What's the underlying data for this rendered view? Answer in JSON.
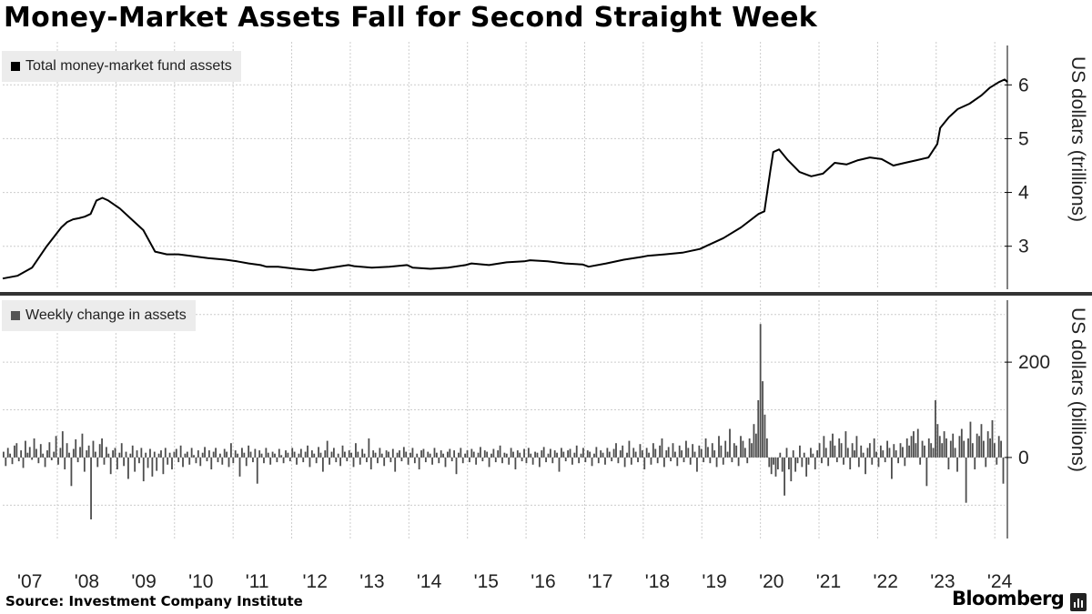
{
  "title": "Money-Market Assets Fall for Second Straight Week",
  "source": "Source: Investment Company Institute",
  "brand": "Bloomberg",
  "brand_icon": "bloomberg-bars-icon",
  "colors": {
    "line": "#000000",
    "bars": "#4d4d4d",
    "grid": "#cccccc",
    "legend_bg": "#ececec"
  },
  "chart_data": [
    {
      "type": "line",
      "legend": "Total money-market fund assets",
      "ylabel": "US dollars (trillions)",
      "y_ticks": [
        "3",
        "4",
        "5",
        "6"
      ],
      "x_ticks": [
        "'07",
        "'08",
        "'09",
        "'10",
        "'11",
        "'12",
        "'13",
        "'14",
        "'15",
        "'16",
        "'17",
        "'18",
        "'19",
        "'20",
        "'21",
        "'22",
        "'23",
        "'24"
      ],
      "ylim": [
        2.2,
        6.8
      ],
      "grid": true,
      "series": [
        {
          "x": [
            2007.0,
            2007.25,
            2007.5,
            2007.75,
            2008.0,
            2008.1,
            2008.2,
            2008.3,
            2008.4,
            2008.5,
            2008.6,
            2008.7,
            2008.8,
            2009.0,
            2009.2,
            2009.4,
            2009.6,
            2009.8,
            2010.0,
            2010.2,
            2010.5,
            2010.8,
            2011.0,
            2011.2,
            2011.4,
            2011.5,
            2011.7,
            2012.0,
            2012.3,
            2012.6,
            2012.9,
            2013.0,
            2013.3,
            2013.6,
            2013.9,
            2014.0,
            2014.3,
            2014.6,
            2014.9,
            2015.0,
            2015.3,
            2015.6,
            2015.9,
            2016.0,
            2016.3,
            2016.6,
            2016.9,
            2017.0,
            2017.3,
            2017.6,
            2017.9,
            2018.0,
            2018.3,
            2018.6,
            2018.9,
            2019.0,
            2019.3,
            2019.6,
            2019.9,
            2020.0,
            2020.1,
            2020.15,
            2020.25,
            2020.4,
            2020.6,
            2020.8,
            2021.0,
            2021.2,
            2021.4,
            2021.6,
            2021.8,
            2022.0,
            2022.2,
            2022.4,
            2022.6,
            2022.8,
            2022.95,
            2023.0,
            2023.15,
            2023.3,
            2023.5,
            2023.7,
            2023.85,
            2024.0,
            2024.1,
            2024.15
          ],
          "values": [
            2.4,
            2.45,
            2.6,
            3.0,
            3.35,
            3.45,
            3.5,
            3.52,
            3.55,
            3.6,
            3.85,
            3.9,
            3.85,
            3.7,
            3.5,
            3.3,
            2.9,
            2.85,
            2.85,
            2.82,
            2.78,
            2.75,
            2.72,
            2.68,
            2.65,
            2.62,
            2.62,
            2.58,
            2.55,
            2.6,
            2.65,
            2.63,
            2.6,
            2.62,
            2.65,
            2.6,
            2.58,
            2.6,
            2.65,
            2.68,
            2.65,
            2.7,
            2.72,
            2.74,
            2.72,
            2.68,
            2.66,
            2.62,
            2.68,
            2.75,
            2.8,
            2.82,
            2.85,
            2.88,
            2.95,
            3.0,
            3.15,
            3.35,
            3.6,
            3.65,
            4.4,
            4.75,
            4.8,
            4.6,
            4.38,
            4.3,
            4.35,
            4.55,
            4.52,
            4.6,
            4.65,
            4.62,
            4.5,
            4.55,
            4.6,
            4.65,
            4.9,
            5.2,
            5.4,
            5.55,
            5.65,
            5.8,
            5.95,
            6.05,
            6.1,
            6.05
          ]
        }
      ]
    },
    {
      "type": "bar",
      "legend": "Weekly change in assets",
      "ylabel": "US dollars (billions)",
      "y_ticks": [
        "0",
        "200"
      ],
      "x_ticks": [
        "'07",
        "'08",
        "'09",
        "'10",
        "'11",
        "'12",
        "'13",
        "'14",
        "'15",
        "'16",
        "'17",
        "'18",
        "'19",
        "'20",
        "'21",
        "'22",
        "'23",
        "'24"
      ],
      "ylim": [
        -170,
        330
      ],
      "grid": true,
      "x_range": [
        2007.0,
        2024.1
      ],
      "series": [
        {
          "values": [
            12,
            -18,
            20,
            8,
            -14,
            25,
            30,
            -8,
            15,
            -22,
            35,
            10,
            22,
            -5,
            40,
            18,
            -12,
            28,
            8,
            -20,
            15,
            32,
            -6,
            12,
            45,
            -15,
            20,
            55,
            -25,
            30,
            10,
            -60,
            18,
            38,
            -10,
            22,
            50,
            -30,
            15,
            25,
            -130,
            35,
            12,
            -20,
            28,
            40,
            -15,
            22,
            8,
            -35,
            15,
            20,
            -25,
            10,
            30,
            -18,
            12,
            -45,
            8,
            25,
            -30,
            15,
            -12,
            20,
            -50,
            10,
            -22,
            18,
            -40,
            12,
            -28,
            8,
            15,
            -35,
            20,
            -15,
            10,
            -25,
            12,
            18,
            -10,
            25,
            -20,
            8,
            12,
            -15,
            20,
            5,
            -12,
            15,
            -18,
            10,
            22,
            -8,
            15,
            -25,
            12,
            20,
            -10,
            8,
            -15,
            18,
            12,
            -20,
            30,
            -12,
            15,
            8,
            -40,
            20,
            10,
            -18,
            25,
            12,
            -10,
            18,
            -55,
            15,
            8,
            -12,
            20,
            10,
            -15,
            12,
            8,
            -10,
            18,
            5,
            -12,
            15,
            10,
            -8,
            20,
            12,
            -15,
            8,
            18,
            -10,
            12,
            25,
            -20,
            15,
            8,
            -12,
            22,
            10,
            -30,
            15,
            35,
            -15,
            12,
            20,
            -10,
            8,
            -18,
            25,
            12,
            -8,
            15,
            10,
            -20,
            30,
            12,
            -15,
            18,
            8,
            -10,
            40,
            -25,
            15,
            10,
            -12,
            20,
            8,
            -18,
            15,
            12,
            -10,
            18,
            -30,
            10,
            15,
            -8,
            22,
            12,
            -15,
            10,
            20,
            -12,
            8,
            -25,
            15,
            18,
            -10,
            12,
            8,
            -15,
            20,
            10,
            -12,
            15,
            8,
            -20,
            12,
            18,
            -8,
            15,
            -35,
            10,
            20,
            -12,
            8,
            15,
            -10,
            18,
            12,
            -15,
            10,
            22,
            -8,
            15,
            12,
            -20,
            8,
            18,
            -10,
            15,
            25,
            -12,
            10,
            8,
            -15,
            20,
            12,
            -25,
            15,
            10,
            -8,
            18,
            -12,
            20,
            8,
            -15,
            12,
            10,
            -20,
            15,
            22,
            -10,
            8,
            18,
            -12,
            15,
            10,
            -30,
            20,
            12,
            -8,
            15,
            18,
            -15,
            10,
            25,
            -12,
            8,
            20,
            -10,
            15,
            12,
            -18,
            8,
            22,
            -12,
            15,
            10,
            -15,
            20,
            12,
            -8,
            18,
            30,
            -12,
            15,
            25,
            -20,
            10,
            35,
            -15,
            20,
            12,
            -10,
            28,
            15,
            -25,
            20,
            10,
            -15,
            30,
            18,
            -12,
            25,
            40,
            -20,
            15,
            22,
            -8,
            30,
            12,
            -18,
            25,
            15,
            -10,
            35,
            20,
            -15,
            28,
            12,
            -30,
            25,
            18,
            -10,
            40,
            22,
            -12,
            30,
            15,
            -20,
            45,
            25,
            -15,
            35,
            12,
            60,
            -10,
            30,
            25,
            -18,
            45,
            35,
            20,
            -12,
            40,
            30,
            70,
            50,
            120,
            280,
            160,
            90,
            40,
            -20,
            -35,
            -15,
            -40,
            -25,
            10,
            -30,
            -80,
            20,
            -25,
            -50,
            15,
            -30,
            -12,
            25,
            -20,
            10,
            -40,
            -15,
            20,
            8,
            -25,
            15,
            30,
            -12,
            45,
            20,
            -18,
            35,
            50,
            25,
            -10,
            40,
            30,
            -15,
            55,
            20,
            -25,
            30,
            15,
            45,
            -20,
            25,
            10,
            -35,
            20,
            30,
            -15,
            40,
            12,
            -20,
            25,
            15,
            -10,
            35,
            20,
            -45,
            28,
            15,
            -12,
            30,
            22,
            -18,
            40,
            25,
            45,
            55,
            30,
            60,
            -15,
            35,
            25,
            -60,
            40,
            30,
            20,
            120,
            70,
            45,
            30,
            55,
            40,
            -25,
            35,
            50,
            20,
            -30,
            45,
            60,
            35,
            -95,
            40,
            75,
            30,
            -25,
            50,
            45,
            70,
            35,
            -20,
            55,
            40,
            78,
            30,
            -15,
            45,
            35,
            -55
          ]
        }
      ]
    }
  ]
}
